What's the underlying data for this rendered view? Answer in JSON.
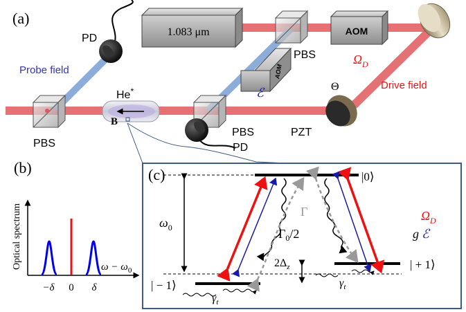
{
  "panel_a": {
    "tag": "(a)",
    "laser_label": "1.083 μm",
    "aom_top": "AOM",
    "aom_mid": "AOM",
    "pbs_top": "PBS",
    "pbs_left": "PBS",
    "pbs_bottom": "PBS",
    "pd_top": "PD",
    "pd_bottom": "PD",
    "probe_field": "Probe field",
    "drive_field": "Drive field",
    "omega_d_base": "Ω",
    "omega_d_sub": "D",
    "eps_label": "ℰ",
    "theta": "Θ",
    "pzt": "PZT",
    "he_base": "He",
    "he_sup": "*",
    "bfield": "B"
  },
  "panel_b": {
    "tag": "(b)",
    "ylabel": "Optical spectrum",
    "xlabel_omega": "ω − ω",
    "xlabel_sub": "0",
    "ticks": [
      "−δ",
      "0",
      "δ"
    ]
  },
  "panel_c": {
    "tag": "(c)",
    "state_0": "|0⟩",
    "state_p1": "| + 1⟩",
    "state_m1": "| − 1⟩",
    "omega0_base": "ω",
    "omega0_sub": "0",
    "gamma_cap": "Γ",
    "gamma0_base": "Γ",
    "gamma0_sub": "0",
    "gamma0_tail": "/2",
    "delta_pre": "2Δ",
    "delta_sub": "z",
    "gamma_t_base": "γ",
    "gamma_t_sub": "t",
    "legend_omega_base": "Ω",
    "legend_omega_sub": "D",
    "legend_g": "g",
    "legend_eps": "ℰ"
  },
  "colors": {
    "beam_red": "#e0585c",
    "beam_blue": "#7fa3d6",
    "arrow_red": "#ee1111",
    "arrow_blue": "#1a1aa8",
    "panel_border": "#3d5a80",
    "dashed_gray": "#999999"
  }
}
